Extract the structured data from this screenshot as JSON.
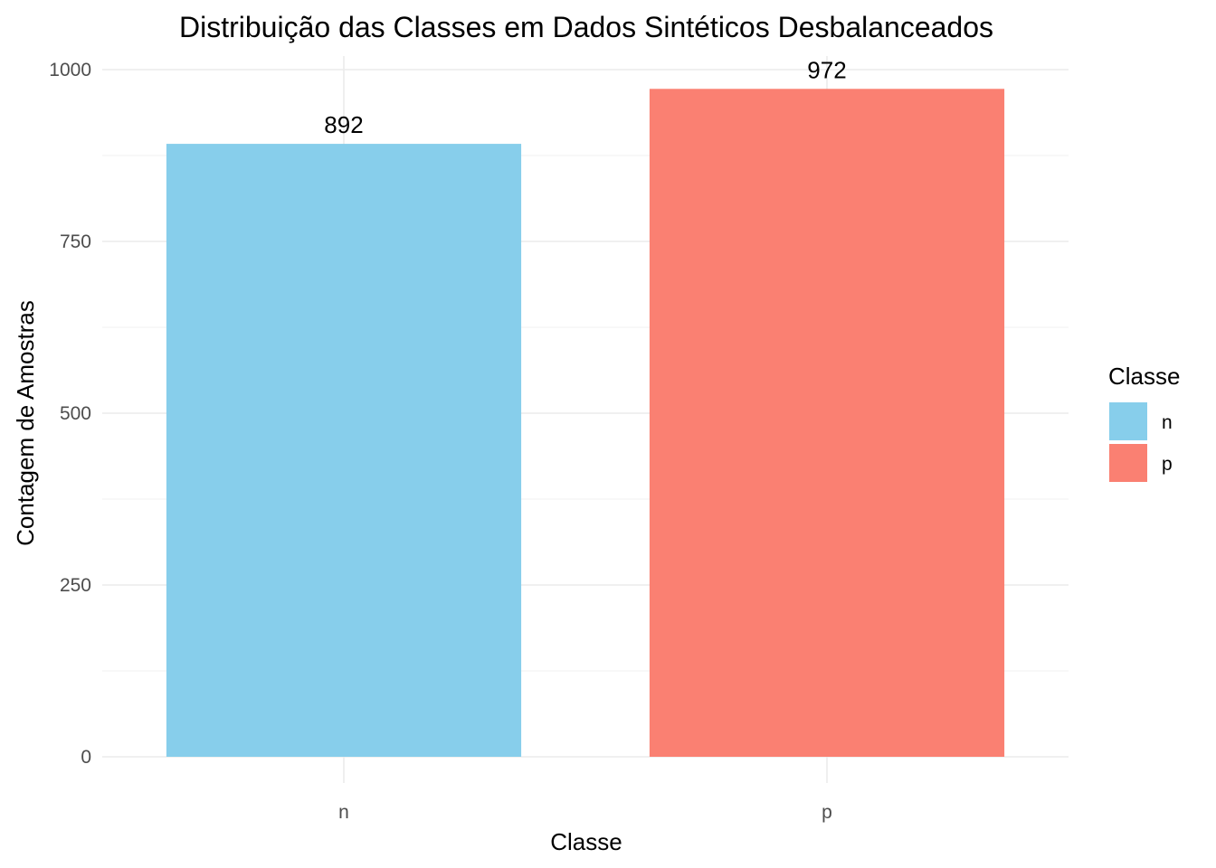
{
  "chart_data": {
    "type": "bar",
    "title": "Distribuição das Classes em Dados Sintéticos Desbalanceados",
    "xlabel": "Classe",
    "ylabel": "Contagem de Amostras",
    "categories": [
      "n",
      "p"
    ],
    "values": [
      892,
      972
    ],
    "data_labels": [
      "892",
      "972"
    ],
    "colors": [
      "#87CEEB",
      "#FA8072"
    ],
    "ylim": [
      0,
      1000
    ],
    "y_ticks": [
      0,
      250,
      500,
      750,
      1000
    ],
    "y_tick_labels": [
      "0",
      "250",
      "500",
      "750",
      "1000"
    ],
    "grid": true,
    "legend": {
      "title": "Classe",
      "position": "right",
      "entries": [
        {
          "label": "n",
          "color": "#87CEEB"
        },
        {
          "label": "p",
          "color": "#FA8072"
        }
      ]
    }
  }
}
